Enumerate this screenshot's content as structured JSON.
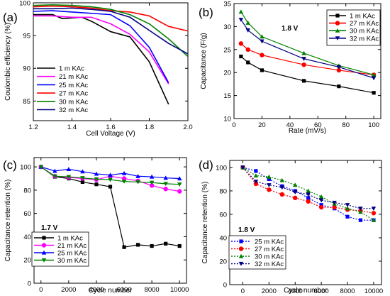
{
  "chart_data": [
    {
      "panel": "(a)",
      "type": "line",
      "xlabel": "Cell Voltage (V)",
      "ylabel": "Coulombic efficiency (%)",
      "xlim": [
        1.2,
        2.0
      ],
      "ylim": [
        82,
        100
      ],
      "xticks": [
        "1.2",
        "1.4",
        "1.6",
        "1.8",
        "2.0"
      ],
      "yticks": [
        "85",
        "90",
        "95",
        "100"
      ],
      "legend_position": "lower-left",
      "series": [
        {
          "name": "1 m KAc",
          "color": "#000000",
          "marker": "none",
          "x": [
            1.2,
            1.3,
            1.35,
            1.45,
            1.5,
            1.6,
            1.7,
            1.8,
            1.9
          ],
          "y": [
            98.2,
            98.2,
            97.6,
            97.8,
            97.2,
            95.6,
            94.8,
            91.0,
            84.5
          ]
        },
        {
          "name": "21 m KAc",
          "color": "#ff00ff",
          "marker": "none",
          "x": [
            1.2,
            1.3,
            1.4,
            1.5,
            1.6,
            1.7,
            1.8,
            1.9
          ],
          "y": [
            98.0,
            98.0,
            97.8,
            97.8,
            96.8,
            95.2,
            92.5,
            87.6
          ]
        },
        {
          "name": "25 m KAc",
          "color": "#0000ff",
          "marker": "none",
          "x": [
            1.2,
            1.3,
            1.4,
            1.5,
            1.6,
            1.7,
            1.8,
            1.9
          ],
          "y": [
            98.7,
            98.8,
            98.6,
            98.4,
            98.2,
            96.5,
            93.2,
            87.8
          ]
        },
        {
          "name": "27 m KAc",
          "color": "#ff0000",
          "marker": "none",
          "x": [
            1.2,
            1.3,
            1.4,
            1.5,
            1.6,
            1.7,
            1.8,
            1.9,
            2.0
          ],
          "y": [
            99.4,
            99.5,
            99.4,
            99.2,
            98.8,
            98.6,
            98.0,
            96.4,
            95.7
          ]
        },
        {
          "name": "30 m KAc",
          "color": "#008000",
          "marker": "none",
          "x": [
            1.2,
            1.3,
            1.4,
            1.5,
            1.6,
            1.7,
            1.8,
            1.9,
            2.0
          ],
          "y": [
            99.6,
            99.7,
            99.6,
            99.4,
            99.0,
            98.2,
            96.8,
            94.5,
            91.8
          ]
        },
        {
          "name": "32 m KAc",
          "color": "#000080",
          "marker": "none",
          "x": [
            1.2,
            1.3,
            1.4,
            1.5,
            1.6,
            1.7,
            1.8,
            1.9,
            2.0
          ],
          "y": [
            99.1,
            99.1,
            99.2,
            99.0,
            98.7,
            97.8,
            95.8,
            93.8,
            92.2
          ]
        }
      ]
    },
    {
      "panel": "(b)",
      "type": "line",
      "xlabel": "Rate (mV/s)",
      "ylabel": "Capacitance (F/g)",
      "xlim": [
        0,
        105
      ],
      "ylim": [
        10,
        35
      ],
      "xticks": [
        "0",
        "20",
        "40",
        "60",
        "80",
        "100"
      ],
      "yticks": [
        "10",
        "15",
        "20",
        "25",
        "30",
        "35"
      ],
      "annotation": "1.8 V",
      "legend_position": "top-right",
      "series": [
        {
          "name": "1 m KAc",
          "color": "#000000",
          "marker": "square",
          "x": [
            5,
            10,
            20,
            50,
            75,
            100
          ],
          "y": [
            23.5,
            22.2,
            20.5,
            18.2,
            17.0,
            15.6
          ]
        },
        {
          "name": "27 m KAc",
          "color": "#ff0000",
          "marker": "circle",
          "x": [
            5,
            10,
            20,
            50,
            75,
            100
          ],
          "y": [
            26.3,
            25.0,
            23.8,
            21.7,
            20.5,
            19.5
          ]
        },
        {
          "name": "30 m KAc",
          "color": "#008000",
          "marker": "triangle-up",
          "x": [
            5,
            10,
            20,
            50,
            75,
            100
          ],
          "y": [
            33.2,
            30.8,
            27.8,
            24.2,
            21.5,
            19.5
          ]
        },
        {
          "name": "32 m KAc",
          "color": "#000080",
          "marker": "triangle-down",
          "x": [
            5,
            10,
            20,
            50,
            75,
            100
          ],
          "y": [
            31.5,
            29.2,
            26.8,
            23.0,
            21.2,
            18.8
          ]
        }
      ]
    },
    {
      "panel": "(c)",
      "type": "line",
      "xlabel": "Cycle number",
      "ylabel": "Capacitance retention (%)",
      "xlim": [
        -500,
        10500
      ],
      "ylim": [
        0,
        108
      ],
      "xticks": [
        "0",
        "2000",
        "4000",
        "6000",
        "8000",
        "10000"
      ],
      "yticks": [
        "0",
        "20",
        "40",
        "60",
        "80",
        "100"
      ],
      "annotation": "1.7 V",
      "legend_position": "lower-left",
      "series": [
        {
          "name": "1 m KAc",
          "color": "#000000",
          "marker": "square",
          "x": [
            0,
            1000,
            2000,
            3000,
            4000,
            5000,
            6000,
            7000,
            8000,
            9000,
            10000
          ],
          "y": [
            100,
            91.5,
            90,
            87,
            85,
            83,
            31,
            33,
            32,
            34,
            32
          ]
        },
        {
          "name": "21 m KAc",
          "color": "#ff00ff",
          "marker": "circle",
          "x": [
            0,
            1000,
            2000,
            3000,
            4000,
            5000,
            6000,
            7000,
            8000,
            9000,
            10000
          ],
          "y": [
            100,
            92,
            91,
            90,
            89,
            92,
            90,
            88,
            84,
            81,
            79
          ]
        },
        {
          "name": "25 m KAc",
          "color": "#0000ff",
          "marker": "triangle-up",
          "x": [
            0,
            1000,
            2000,
            3000,
            4000,
            5000,
            6000,
            7000,
            8000,
            9000,
            10000
          ],
          "y": [
            100,
            96.5,
            98,
            96,
            94,
            93,
            94.5,
            92,
            91.5,
            90.5,
            90
          ]
        },
        {
          "name": "30 m KAc",
          "color": "#008000",
          "marker": "triangle-down",
          "x": [
            0,
            1000,
            2000,
            3000,
            4000,
            5000,
            6000,
            7000,
            8000,
            9000,
            10000
          ],
          "y": [
            100,
            92,
            91.5,
            90.5,
            89.5,
            89,
            87.5,
            87,
            86.5,
            85.5,
            85
          ]
        }
      ]
    },
    {
      "panel": "(d)",
      "type": "line",
      "xlabel": "Cycle number",
      "ylabel": "Capacitance retention (%)",
      "xlim": [
        -1000,
        10600
      ],
      "ylim": [
        0,
        106
      ],
      "xticks": [
        "0",
        "2000",
        "4000",
        "6000",
        "8000",
        "10000"
      ],
      "yticks": [
        "0",
        "20",
        "40",
        "60",
        "80",
        "100"
      ],
      "annotation": "1.8 V",
      "legend_position": "lower-left",
      "series": [
        {
          "name": "25 m KAc",
          "color": "#0000ff",
          "marker": "square",
          "dashed": true,
          "x": [
            0,
            1000,
            2000,
            3000,
            4000,
            5000,
            6000,
            7000,
            8000,
            9000,
            10000
          ],
          "y": [
            100,
            97,
            90,
            84,
            80,
            74,
            68,
            65,
            58,
            55,
            55
          ]
        },
        {
          "name": "27 m KAc",
          "color": "#ff0000",
          "marker": "circle",
          "dashed": true,
          "x": [
            0,
            1000,
            2000,
            3000,
            4000,
            5000,
            6000,
            7000,
            8000,
            9000,
            10000
          ],
          "y": [
            100,
            86,
            81,
            77,
            74,
            71,
            66,
            66,
            64,
            63,
            61
          ]
        },
        {
          "name": "30 m KAc",
          "color": "#008000",
          "marker": "triangle-up",
          "dashed": true,
          "x": [
            0,
            1000,
            2000,
            3000,
            4000,
            5000,
            6000,
            7000,
            8000,
            9000,
            10000
          ],
          "y": [
            100,
            93,
            92,
            89,
            85,
            80,
            75,
            69,
            65,
            62,
            55
          ]
        },
        {
          "name": "32 m KAc",
          "color": "#000080",
          "marker": "triangle-down",
          "dashed": true,
          "x": [
            0,
            1000,
            2000,
            3000,
            4000,
            5000,
            6000,
            7000,
            8000,
            9000,
            10000
          ],
          "y": [
            100,
            88,
            85,
            83,
            79,
            77,
            72,
            70,
            68,
            65,
            65
          ]
        }
      ]
    }
  ]
}
